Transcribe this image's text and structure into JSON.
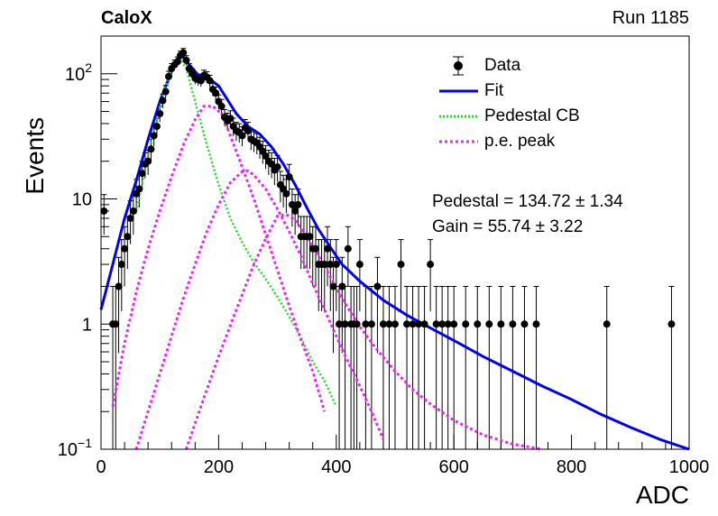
{
  "header": {
    "experiment": "CaloX",
    "run": "Run 1185"
  },
  "stats": {
    "pedestal": "Pedestal = 134.72 ± 1.34",
    "gain": "Gain = 55.74 ± 3.22"
  },
  "chart_data": {
    "type": "scatter",
    "title": "",
    "xlabel": "ADC",
    "ylabel": "Events",
    "xlim": [
      0,
      1000
    ],
    "ylim": [
      0.1,
      200
    ],
    "yscale": "log",
    "grid": false,
    "legend_position": "top-right",
    "x_ticks": [
      "0",
      "200",
      "400",
      "600",
      "800",
      "1000"
    ],
    "y_ticks": [
      {
        "value": 0.1,
        "label": "10",
        "sup": "−1"
      },
      {
        "value": 1,
        "label": "1",
        "sup": ""
      },
      {
        "value": 10,
        "label": "10",
        "sup": ""
      },
      {
        "value": 100,
        "label": "10",
        "sup": "2"
      }
    ],
    "colors": {
      "data": "#000000",
      "fit": "#0000ee",
      "pedestal": "#22dd22",
      "pe": "#ee22ee"
    },
    "series": [
      {
        "name": "Data",
        "kind": "points_errors",
        "x": [
          5,
          20,
          25,
          30,
          35,
          40,
          45,
          50,
          55,
          60,
          65,
          70,
          75,
          80,
          85,
          90,
          95,
          100,
          105,
          110,
          115,
          120,
          125,
          130,
          135,
          140,
          145,
          150,
          155,
          160,
          165,
          170,
          175,
          180,
          185,
          190,
          195,
          200,
          205,
          210,
          215,
          220,
          225,
          230,
          235,
          240,
          245,
          250,
          255,
          260,
          265,
          270,
          275,
          280,
          285,
          290,
          295,
          300,
          305,
          310,
          315,
          320,
          325,
          330,
          335,
          340,
          345,
          350,
          355,
          360,
          365,
          370,
          375,
          380,
          385,
          390,
          395,
          400,
          405,
          410,
          415,
          420,
          425,
          430,
          435,
          440,
          450,
          460,
          470,
          480,
          490,
          500,
          510,
          520,
          530,
          540,
          550,
          560,
          570,
          580,
          590,
          600,
          620,
          640,
          660,
          680,
          700,
          720,
          740,
          860,
          970
        ],
        "y": [
          8,
          1,
          1,
          2,
          3,
          4,
          5,
          7,
          8,
          11,
          12,
          16,
          19,
          20,
          25,
          32,
          38,
          48,
          61,
          72,
          95,
          110,
          118,
          125,
          140,
          147,
          128,
          110,
          100,
          92,
          90,
          88,
          97,
          94,
          88,
          75,
          70,
          60,
          55,
          45,
          42,
          44,
          38,
          35,
          34,
          32,
          37,
          35,
          30,
          29,
          28,
          26,
          24,
          22,
          20,
          19,
          17,
          18,
          13,
          12,
          11,
          15,
          9,
          8,
          9,
          5,
          5,
          5,
          5,
          4,
          4,
          3,
          3,
          3,
          4,
          3,
          2,
          3,
          1,
          2,
          1,
          4,
          1,
          1,
          1,
          3,
          1,
          1,
          2,
          1,
          1,
          1,
          3,
          1,
          1,
          1,
          1,
          3,
          1,
          1,
          1,
          1,
          1,
          1,
          1,
          1,
          1,
          1,
          1,
          1,
          1
        ]
      },
      {
        "name": "Fit",
        "kind": "line",
        "x": [
          0,
          20,
          40,
          60,
          80,
          100,
          120,
          135,
          150,
          165,
          180,
          190,
          200,
          215,
          230,
          250,
          270,
          290,
          310,
          330,
          350,
          370,
          390,
          410,
          440,
          480,
          520,
          560,
          600,
          650,
          700,
          750,
          800,
          850,
          900,
          950,
          1000
        ],
        "y": [
          1.3,
          3,
          7,
          14,
          30,
          60,
          105,
          147,
          118,
          98,
          90,
          87,
          80,
          62,
          48,
          38,
          33,
          26,
          19,
          13,
          8.5,
          5.7,
          4.1,
          3,
          2.2,
          1.55,
          1.18,
          0.93,
          0.74,
          0.55,
          0.42,
          0.32,
          0.25,
          0.19,
          0.15,
          0.12,
          0.1
        ]
      },
      {
        "name": "Pedestal CB",
        "kind": "dotted",
        "x": [
          60,
          80,
          100,
          115,
          125,
          135,
          145,
          160,
          180,
          200,
          220,
          240,
          260,
          280,
          300,
          320,
          340,
          360,
          380,
          400
        ],
        "y": [
          8,
          22,
          55,
          95,
          125,
          130,
          110,
          60,
          27,
          13,
          7,
          4.5,
          3.1,
          2.3,
          1.65,
          1.15,
          0.78,
          0.5,
          0.35,
          0.22
        ]
      },
      {
        "name": "p.e. peak",
        "kind": "dotted",
        "x": [
          20,
          40,
          60,
          80,
          100,
          120,
          140,
          160,
          175,
          190,
          205,
          220,
          240,
          260,
          280,
          300,
          320,
          340,
          360,
          380
        ],
        "y": [
          0.22,
          0.7,
          1.8,
          4,
          8,
          15,
          27,
          43,
          55,
          55,
          48,
          32,
          18,
          10,
          5.2,
          2.7,
          1.4,
          0.75,
          0.42,
          0.2
        ]
      },
      {
        "name": "",
        "kind": "dotted",
        "x": [
          60,
          80,
          100,
          120,
          140,
          160,
          180,
          200,
          220,
          240,
          250,
          260,
          280,
          300,
          320,
          340,
          360,
          380,
          400,
          420,
          440,
          460,
          480
        ],
        "y": [
          0.1,
          0.2,
          0.4,
          0.8,
          1.6,
          3,
          5.5,
          9,
          13.5,
          16.5,
          16.8,
          15.5,
          12,
          8.3,
          5.5,
          3.5,
          2.1,
          1.3,
          0.8,
          0.5,
          0.32,
          0.2,
          0.12
        ]
      },
      {
        "name": "",
        "kind": "dotted",
        "x": [
          145,
          170,
          200,
          230,
          260,
          280,
          300,
          315,
          330,
          350,
          380,
          410,
          440,
          470,
          500,
          530,
          560,
          600,
          650,
          700,
          750
        ],
        "y": [
          0.1,
          0.22,
          0.55,
          1.3,
          3,
          4.8,
          7.3,
          7.5,
          6.8,
          5,
          2.9,
          1.6,
          0.95,
          0.62,
          0.42,
          0.3,
          0.23,
          0.17,
          0.13,
          0.11,
          0.1
        ]
      }
    ]
  }
}
